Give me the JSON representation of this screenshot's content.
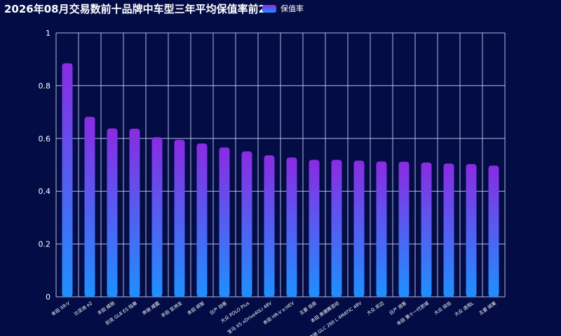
{
  "colors": {
    "background": "#030c45",
    "grid": "#cfd8ff",
    "bar_top": "#8a2be2",
    "bar_bottom": "#1e90ff",
    "text": "#ffffff"
  },
  "chart_data": {
    "type": "bar",
    "title": "2026年08月交易数前十品牌中车型三年平均保值率前20",
    "xlabel": "",
    "ylabel": "",
    "ylim": [
      0,
      1
    ],
    "yticks": [
      "0",
      "0.2",
      "0.4",
      "0.6",
      "0.8",
      "1"
    ],
    "grid": true,
    "legend_position": "top",
    "categories": [
      "本田 XR-V",
      "比亚迪 e2",
      "丰田 威驰",
      "别克 GL8 ES 陆尊",
      "奔驰 威霆",
      "丰田 亚洲龙",
      "本田 缤智",
      "日产 劲客",
      "大众 POLO Plus",
      "宝马 X5 xDrive40Li 48V",
      "本田 HR-V e:HEV",
      "五菱 佳辰",
      "本田 奥德赛混动",
      "奔驰 GLC 260 L 4MATIC 48V",
      "大众 凯迈",
      "日产 逍客",
      "本田 第十一代思域",
      "大众 探岳",
      "大众 途观L",
      "五菱 缤果"
    ],
    "series": [
      {
        "name": "保值率",
        "values": [
          0.885,
          0.682,
          0.638,
          0.637,
          0.605,
          0.595,
          0.581,
          0.566,
          0.551,
          0.536,
          0.528,
          0.519,
          0.519,
          0.516,
          0.513,
          0.512,
          0.509,
          0.505,
          0.503,
          0.497
        ]
      }
    ]
  }
}
